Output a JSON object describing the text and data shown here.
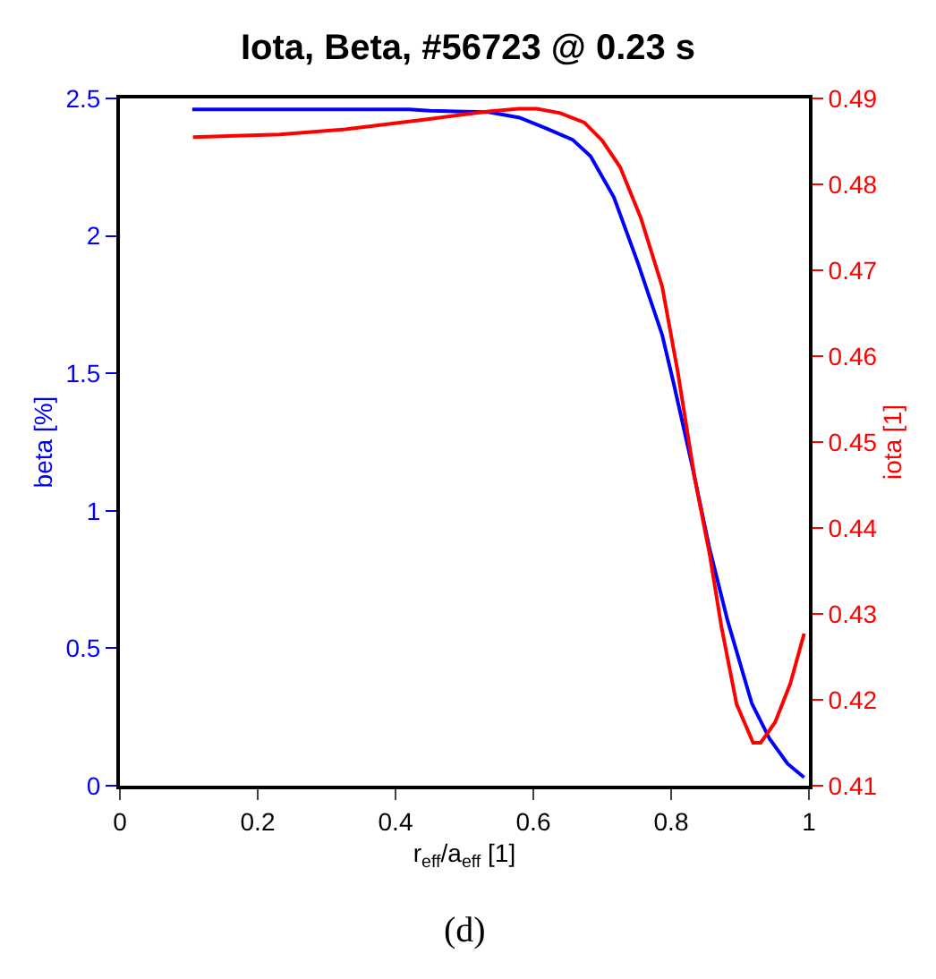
{
  "chart_data": {
    "type": "line",
    "title": "Iota, Beta, #56723 @ 0.23 s",
    "xlabel": "r$_{eff}$/a$_{eff}$ [1]",
    "ylabel": "beta [%]",
    "y2label": "iota [1]",
    "annotations": [
      "(d)"
    ],
    "xlim": [
      0,
      1
    ],
    "xticks": [
      0,
      0.2,
      0.4,
      0.6,
      0.8,
      1
    ],
    "ylim": [
      0,
      2.5
    ],
    "yticks": [
      0,
      0.5,
      1,
      1.5,
      2,
      2.5
    ],
    "y2lim": [
      0.41,
      0.49
    ],
    "y2ticks": [
      0.41,
      0.42,
      0.43,
      0.44,
      0.45,
      0.46,
      0.47,
      0.48,
      0.49
    ],
    "grid": false,
    "marker": "none",
    "line_style": "solid",
    "series": [
      {
        "color": "#0000ff",
        "x": [
          0.105,
          0.42,
          0.45,
          0.535,
          0.58,
          0.62,
          0.657,
          0.683,
          0.717,
          0.752,
          0.787,
          0.804,
          0.83,
          0.856,
          0.882,
          0.917,
          0.943,
          0.969,
          0.993
        ],
        "values": [
          2.46,
          2.46,
          2.455,
          2.45,
          2.43,
          2.39,
          2.35,
          2.29,
          2.14,
          1.9,
          1.64,
          1.46,
          1.17,
          0.86,
          0.6,
          0.3,
          0.17,
          0.08,
          0.03
        ]
      },
      {
        "color": "#ff0000",
        "axis": "y2",
        "x": [
          0.106,
          0.232,
          0.327,
          0.449,
          0.535,
          0.579,
          0.605,
          0.639,
          0.674,
          0.7,
          0.726,
          0.756,
          0.787,
          0.81,
          0.834,
          0.856,
          0.873,
          0.895,
          0.919,
          0.93,
          0.951,
          0.973,
          0.993
        ],
        "values": [
          0.4855,
          0.4858,
          0.4864,
          0.4876,
          0.4885,
          0.4888,
          0.4888,
          0.4883,
          0.4872,
          0.4851,
          0.482,
          0.4761,
          0.4681,
          0.458,
          0.4459,
          0.4369,
          0.4285,
          0.4195,
          0.415,
          0.415,
          0.4174,
          0.4219,
          0.4277
        ]
      }
    ]
  }
}
